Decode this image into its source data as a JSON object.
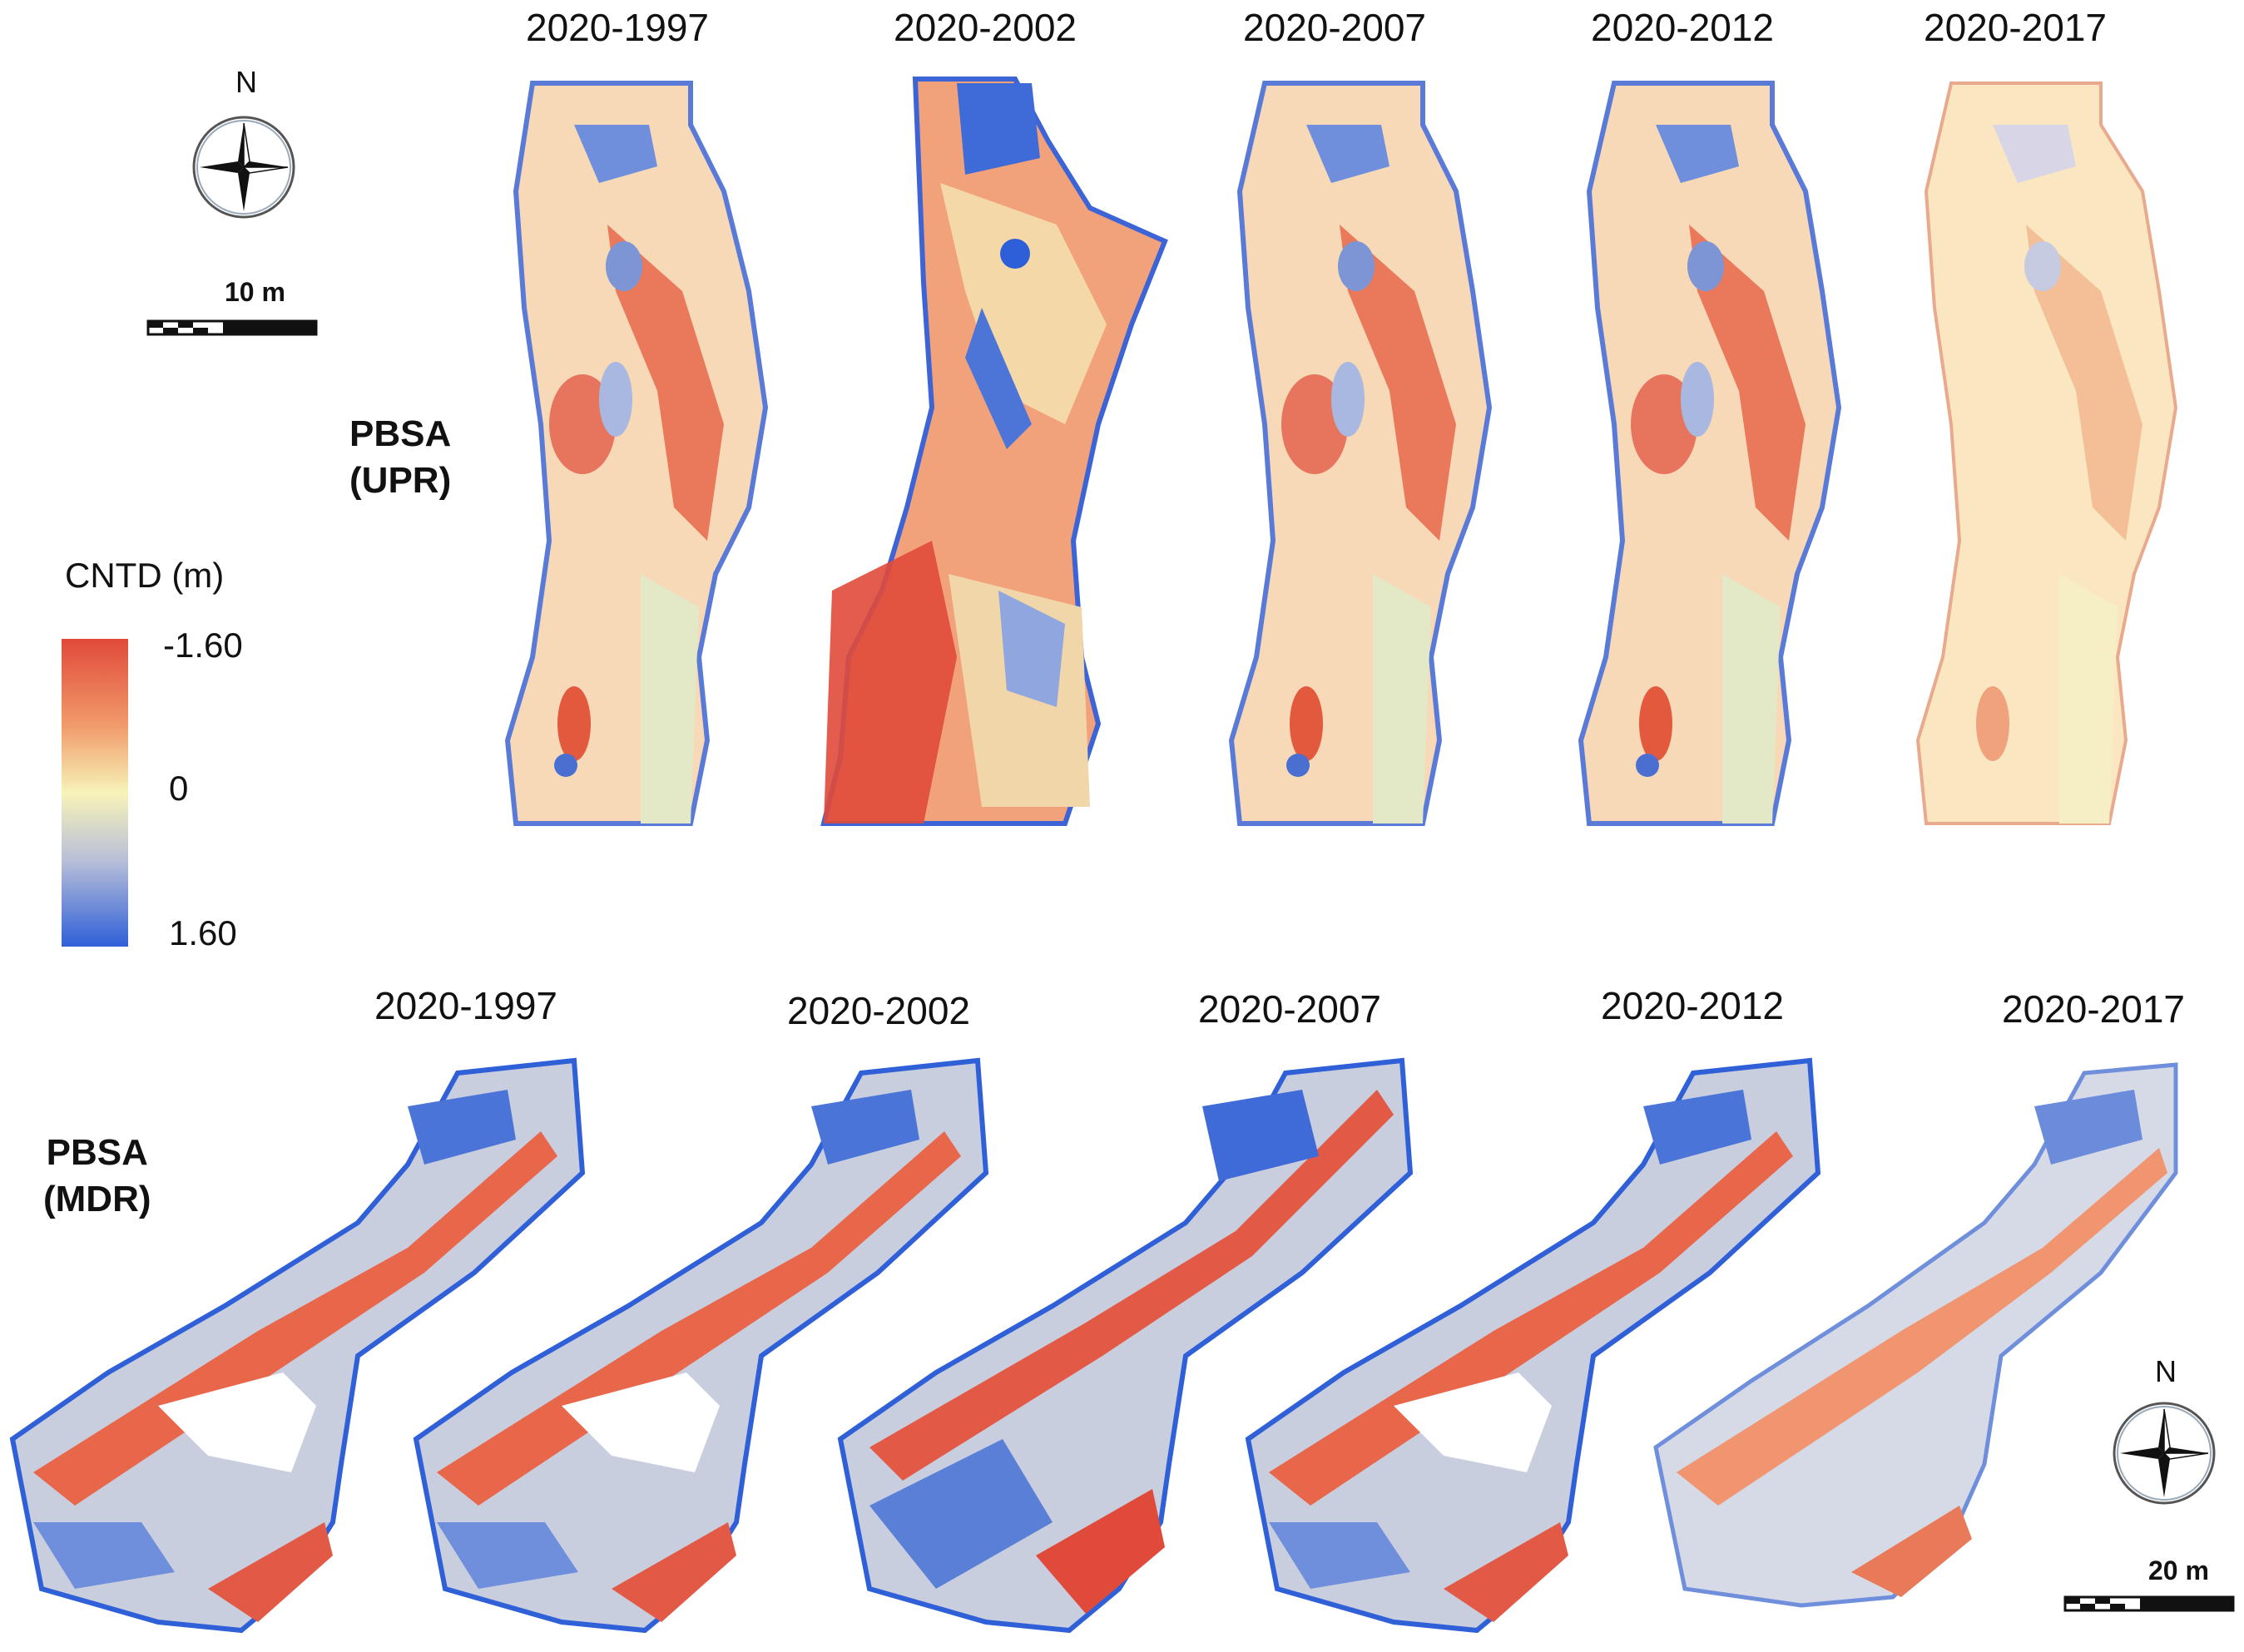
{
  "upr": {
    "row_label": [
      "PBSA",
      "(UPR)"
    ],
    "panels": [
      "2020-1997",
      "2020-2002",
      "2020-2007",
      "2020-2012",
      "2020-2017"
    ]
  },
  "mdr": {
    "row_label": [
      "PBSA",
      "(MDR)"
    ],
    "panels": [
      "2020-1997",
      "2020-2002",
      "2020-2007",
      "2020-2012",
      "2020-2017"
    ]
  },
  "legend": {
    "title": "CNTD (m)",
    "ticks": [
      "-1.60",
      "0",
      "1.60"
    ],
    "colors": [
      "#e04a3a",
      "#f6a070",
      "#f7f3b8",
      "#b8bfd8",
      "#2f5fd8"
    ]
  },
  "north_arrow": {
    "letter": "N",
    "icon": "compass-rose-icon"
  },
  "scale_bars": {
    "upr": "10 m",
    "mdr": "20 m"
  }
}
